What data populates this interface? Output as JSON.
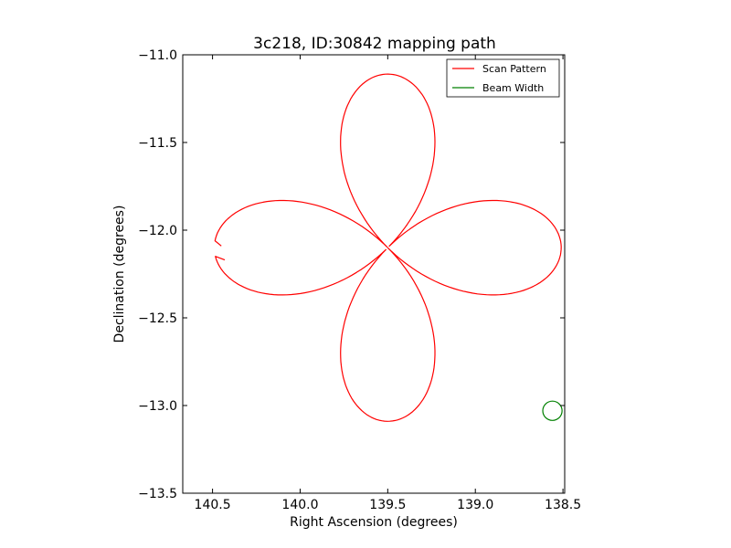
{
  "chart_data": {
    "type": "line",
    "title": "3c218, ID:30842 mapping path",
    "xlabel": "Right Ascension (degrees)",
    "ylabel": "Declination (degrees)",
    "xlim": [
      140.67,
      138.49
    ],
    "ylim": [
      -13.5,
      -11.0
    ],
    "x_inverted": true,
    "xticks": [
      140.5,
      140.0,
      139.5,
      139.0,
      138.5
    ],
    "xtick_labels": [
      "140.5",
      "140.0",
      "139.5",
      "139.0",
      "138.5"
    ],
    "yticks": [
      -11.0,
      -11.5,
      -12.0,
      -12.5,
      -13.0,
      -13.5
    ],
    "ytick_labels": [
      "−11.0",
      "−11.5",
      "−12.0",
      "−12.5",
      "−13.0",
      "−13.5"
    ],
    "grid": false,
    "legend_position": "top-right",
    "series": [
      {
        "name": "Scan Pattern",
        "color": "#ff0000",
        "shape": "four-petal rose scan",
        "center": [
          139.5,
          -12.1
        ],
        "petal_extent_deg": 0.99,
        "start_point": [
          140.45,
          -12.09
        ],
        "end_point": [
          140.43,
          -12.17
        ]
      },
      {
        "name": "Beam Width",
        "color": "#008000",
        "shape": "circle",
        "center": [
          138.56,
          -13.03
        ],
        "radius_deg": 0.055
      }
    ]
  }
}
